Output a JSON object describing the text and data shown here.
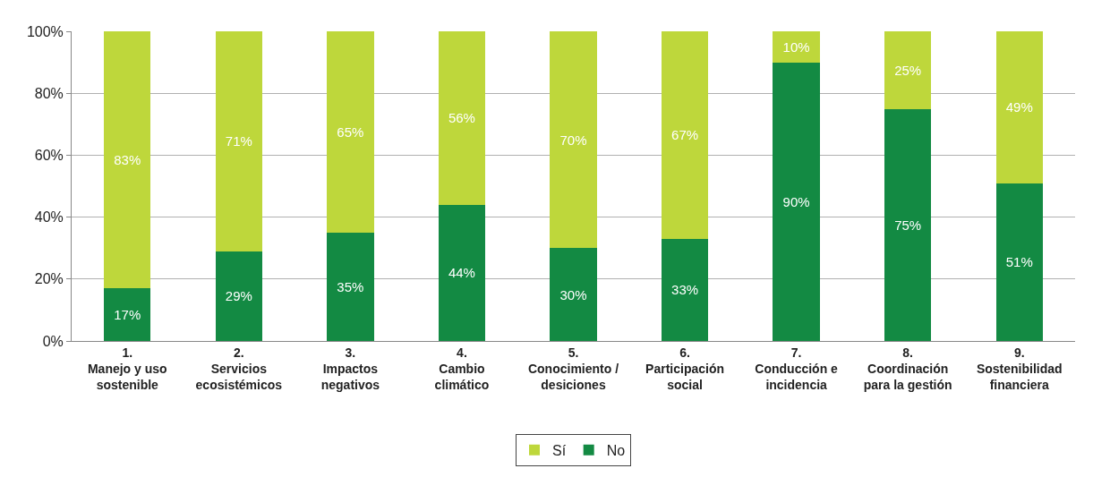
{
  "chart_data": {
    "type": "bar",
    "stacked": true,
    "categories": [
      "1.\nManejo y uso\nsostenible",
      "2.\nServicios\necosistémicos",
      "3.\nImpactos\nnegativos",
      "4.\nCambio\nclimático",
      "5.\nConocimiento /\ndesiciones",
      "6.\nParticipación\nsocial",
      "7.\nConducción e\nincidencia",
      "8.\nCoordinación\npara la gestión",
      "9.\nSostenibilidad\nfinanciera"
    ],
    "series": [
      {
        "name": "No",
        "color": "#138a43",
        "values": [
          17,
          29,
          35,
          44,
          30,
          33,
          90,
          75,
          51
        ],
        "value_labels": [
          "17%",
          "29%",
          "35%",
          "44%",
          "30%",
          "33%",
          "90%",
          "75%",
          "51%"
        ]
      },
      {
        "name": "Sí",
        "color": "#bed73b",
        "values": [
          83,
          71,
          65,
          56,
          70,
          67,
          10,
          25,
          49
        ],
        "value_labels": [
          "83%",
          "71%",
          "65%",
          "56%",
          "70%",
          "67%",
          "10%",
          "25%",
          "49%"
        ]
      }
    ],
    "ylim": [
      0,
      100
    ],
    "yticks": [
      {
        "value": 0,
        "label": "0%"
      },
      {
        "value": 20,
        "label": "20%"
      },
      {
        "value": 40,
        "label": "40%"
      },
      {
        "value": 60,
        "label": "60%"
      },
      {
        "value": 80,
        "label": "80%"
      },
      {
        "value": 100,
        "label": "100%"
      }
    ],
    "grid": "y",
    "legend": "bottom"
  }
}
